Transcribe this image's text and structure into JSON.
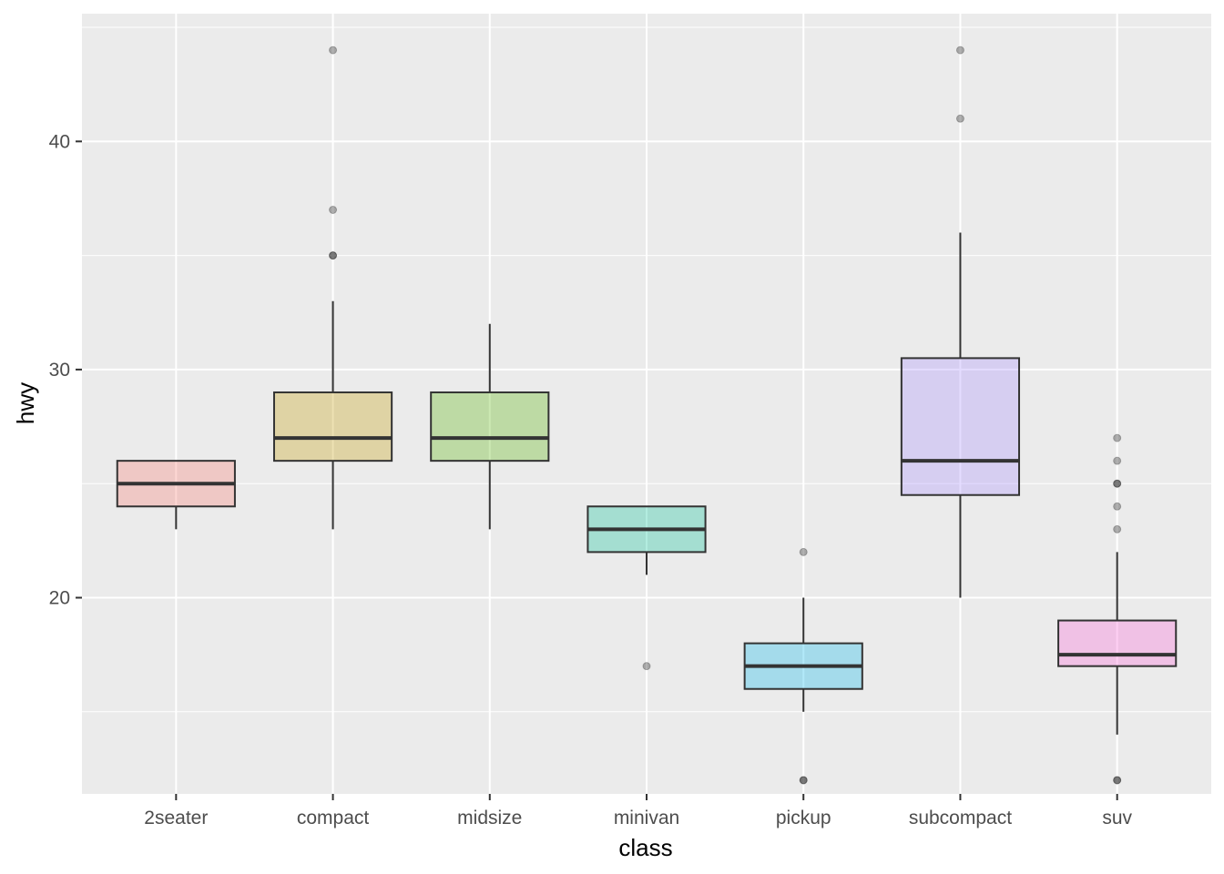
{
  "chart_data": {
    "type": "boxplot",
    "xlabel": "class",
    "ylabel": "hwy",
    "ylim": [
      11.4,
      45.6
    ],
    "y_ticks": [
      20,
      30,
      40
    ],
    "y_minor_ticks": [
      15,
      25,
      35,
      45
    ],
    "grid": true,
    "categories": [
      "2seater",
      "compact",
      "midsize",
      "minivan",
      "pickup",
      "subcompact",
      "suv"
    ],
    "boxes": [
      {
        "category": "2seater",
        "whisker_low": 23,
        "q1": 24,
        "median": 25,
        "q3": 26,
        "whisker_high": 26,
        "outliers": [],
        "fill": "#F8766D"
      },
      {
        "category": "compact",
        "whisker_low": 23,
        "q1": 26,
        "median": 27,
        "q3": 29,
        "whisker_high": 33,
        "outliers": [
          44,
          37,
          35,
          35
        ],
        "fill": "#C49A00"
      },
      {
        "category": "midsize",
        "whisker_low": 23,
        "q1": 26,
        "median": 27,
        "q3": 29,
        "whisker_high": 32,
        "outliers": [],
        "fill": "#53B400"
      },
      {
        "category": "minivan",
        "whisker_low": 21,
        "q1": 22,
        "median": 23,
        "q3": 24,
        "whisker_high": 24,
        "outliers": [
          17
        ],
        "fill": "#00C094"
      },
      {
        "category": "pickup",
        "whisker_low": 15,
        "q1": 16,
        "median": 17,
        "q3": 18,
        "whisker_high": 20,
        "outliers": [
          22,
          12,
          12
        ],
        "fill": "#00B6EB"
      },
      {
        "category": "subcompact",
        "whisker_low": 20,
        "q1": 24.5,
        "median": 26,
        "q3": 30.5,
        "whisker_high": 36,
        "outliers": [
          44,
          41
        ],
        "fill": "#A58AFF"
      },
      {
        "category": "suv",
        "whisker_low": 14,
        "q1": 17,
        "median": 17.5,
        "q3": 19,
        "whisker_high": 22,
        "outliers": [
          27,
          26,
          25,
          25,
          24,
          23,
          12,
          12
        ],
        "fill": "#FB61D7"
      }
    ]
  }
}
